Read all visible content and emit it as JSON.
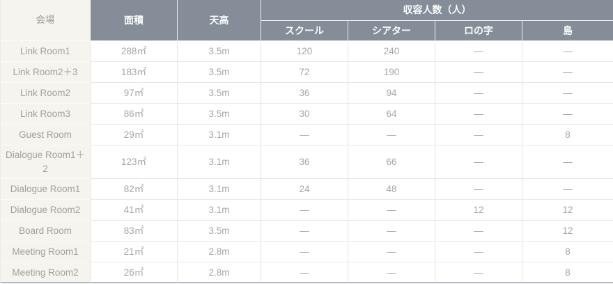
{
  "table": {
    "header": {
      "venue": "会場",
      "area": "面積",
      "ceiling": "天高",
      "capacity_group": "収容人数（人）",
      "capacity_cols": {
        "school": "スクール",
        "theater": "シアター",
        "ronoji": "ロの字",
        "island": "島"
      }
    },
    "rows": [
      {
        "venue": "Link Room1",
        "area": "288㎡",
        "ceiling": "3.5m",
        "school": "120",
        "theater": "240",
        "ronoji": "—",
        "island": "—"
      },
      {
        "venue": "Link Room2＋3",
        "area": "183㎡",
        "ceiling": "3.5m",
        "school": "72",
        "theater": "190",
        "ronoji": "—",
        "island": "—"
      },
      {
        "venue": "Link Room2",
        "area": "97㎡",
        "ceiling": "3.5m",
        "school": "36",
        "theater": "94",
        "ronoji": "—",
        "island": "—"
      },
      {
        "venue": "Link Room3",
        "area": "86㎡",
        "ceiling": "3.5m",
        "school": "30",
        "theater": "64",
        "ronoji": "—",
        "island": "—"
      },
      {
        "venue": "Guest Room",
        "area": "29㎡",
        "ceiling": "3.1m",
        "school": "—",
        "theater": "—",
        "ronoji": "—",
        "island": "8"
      },
      {
        "venue": "Dialogue Room1＋2",
        "area": "123㎡",
        "ceiling": "3.1m",
        "school": "36",
        "theater": "66",
        "ronoji": "—",
        "island": "—"
      },
      {
        "venue": "Dialogue Room1",
        "area": "82㎡",
        "ceiling": "3.1m",
        "school": "24",
        "theater": "48",
        "ronoji": "—",
        "island": "—"
      },
      {
        "venue": "Dialogue Room2",
        "area": "41㎡",
        "ceiling": "3.1m",
        "school": "—",
        "theater": "—",
        "ronoji": "12",
        "island": "12"
      },
      {
        "venue": "Board Room",
        "area": "83㎡",
        "ceiling": "3.5m",
        "school": "—",
        "theater": "—",
        "ronoji": "—",
        "island": "12"
      },
      {
        "venue": "Meeting Room1",
        "area": "21㎡",
        "ceiling": "2.8m",
        "school": "—",
        "theater": "—",
        "ronoji": "—",
        "island": "8"
      },
      {
        "venue": "Meeting Room2",
        "area": "26㎡",
        "ceiling": "2.8m",
        "school": "—",
        "theater": "—",
        "ronoji": "—",
        "island": "8"
      }
    ]
  },
  "colors": {
    "header_bg": "#858D98",
    "header_text": "#FBFCFD",
    "venue_col_bg": "#F5F4EF",
    "data_text": "#A6A6A7",
    "grid_line": "#E3E3E2",
    "table_bottom_border": "#B4B8BC"
  }
}
